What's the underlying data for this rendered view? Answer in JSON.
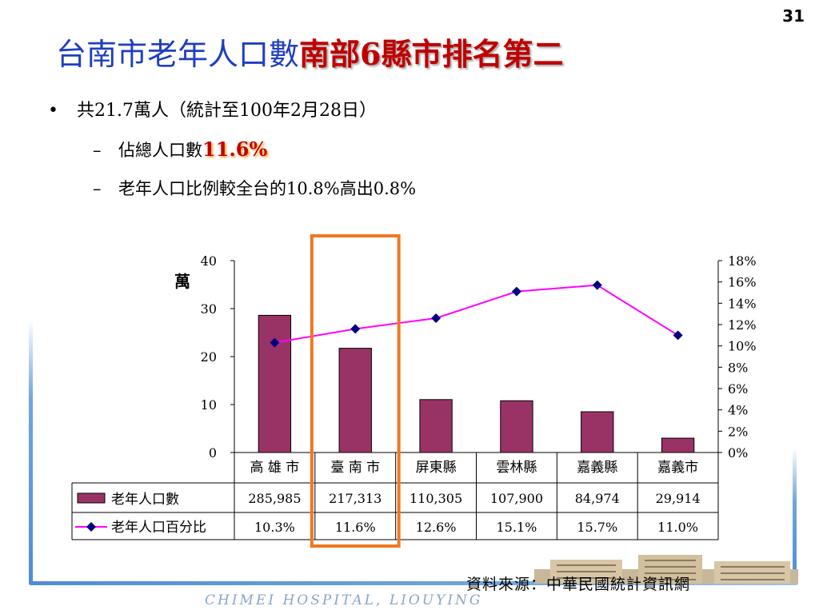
{
  "page_number": "31",
  "title": {
    "main": "台南市老年人口數",
    "emphasis": "南部6縣市排名第二"
  },
  "bullets": {
    "main": "共21.7萬人（統計至100年2月28日）",
    "sub1_prefix": "佔總人口數",
    "sub1_highlight": "11.6%",
    "sub2": "老年人口比例較全台的10.8%高出0.8%"
  },
  "footer": {
    "source": "資料來源：中華民國統計資訊網",
    "hospital": "CHIMEI HOSPITAL, LIOUYING"
  },
  "colors": {
    "bar": "#993366",
    "line": "#ff00ff",
    "marker": "#000080",
    "highlight_box": "#f07820",
    "title_blue": "#1f3fbf",
    "emphasis_red": "#c00000"
  },
  "chart_data": {
    "type": "bar",
    "categories": [
      "高 雄 市",
      "臺 南 市",
      "屏東縣",
      "雲林縣",
      "嘉義縣",
      "嘉義市"
    ],
    "y_left_unit": "萬",
    "ylim_left": [
      0,
      40
    ],
    "yticks_left": [
      "0",
      "10",
      "20",
      "30",
      "40"
    ],
    "ylim_right": [
      0,
      18
    ],
    "yticks_right": [
      "0%",
      "2%",
      "4%",
      "6%",
      "8%",
      "10%",
      "12%",
      "14%",
      "16%",
      "18%"
    ],
    "series": [
      {
        "name": "老年人口數",
        "type": "bar",
        "axis": "left",
        "values": [
          28.5985,
          21.7313,
          11.0305,
          10.79,
          8.4974,
          2.9914
        ],
        "table_labels": [
          "285,985",
          "217,313",
          "110,305",
          "107,900",
          "84,974",
          "29,914"
        ]
      },
      {
        "name": "老年人口百分比",
        "type": "line",
        "axis": "right",
        "values": [
          10.3,
          11.6,
          12.6,
          15.1,
          15.7,
          11.0
        ],
        "table_labels": [
          "10.3%",
          "11.6%",
          "12.6%",
          "15.1%",
          "15.7%",
          "11.0%"
        ]
      }
    ],
    "highlight_category_index": 1
  }
}
